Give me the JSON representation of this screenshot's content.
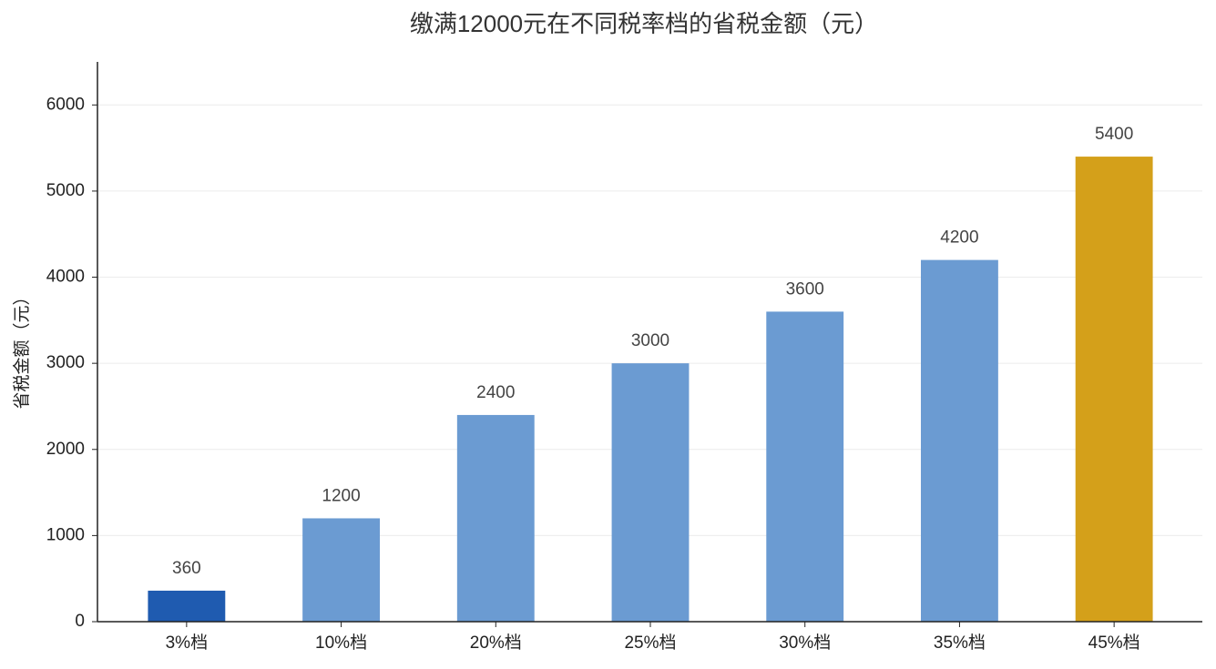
{
  "chart_data": {
    "type": "bar",
    "title": "缴满12000元在不同税率档的省税金额（元）",
    "y_label": "省税金额（元）",
    "categories": [
      "3%档",
      "10%档",
      "20%档",
      "25%档",
      "30%档",
      "35%档",
      "45%档"
    ],
    "values": [
      360,
      1200,
      2400,
      3000,
      3600,
      4200,
      5400
    ],
    "colors": [
      "#1f5bb0",
      "#6b9bd2",
      "#6b9bd2",
      "#6b9bd2",
      "#6b9bd2",
      "#6b9bd2",
      "#d4a01a"
    ],
    "ylim": [
      0,
      6500
    ],
    "yticks": [
      0,
      1000,
      2000,
      3000,
      4000,
      5000,
      6000
    ],
    "grid": true
  }
}
